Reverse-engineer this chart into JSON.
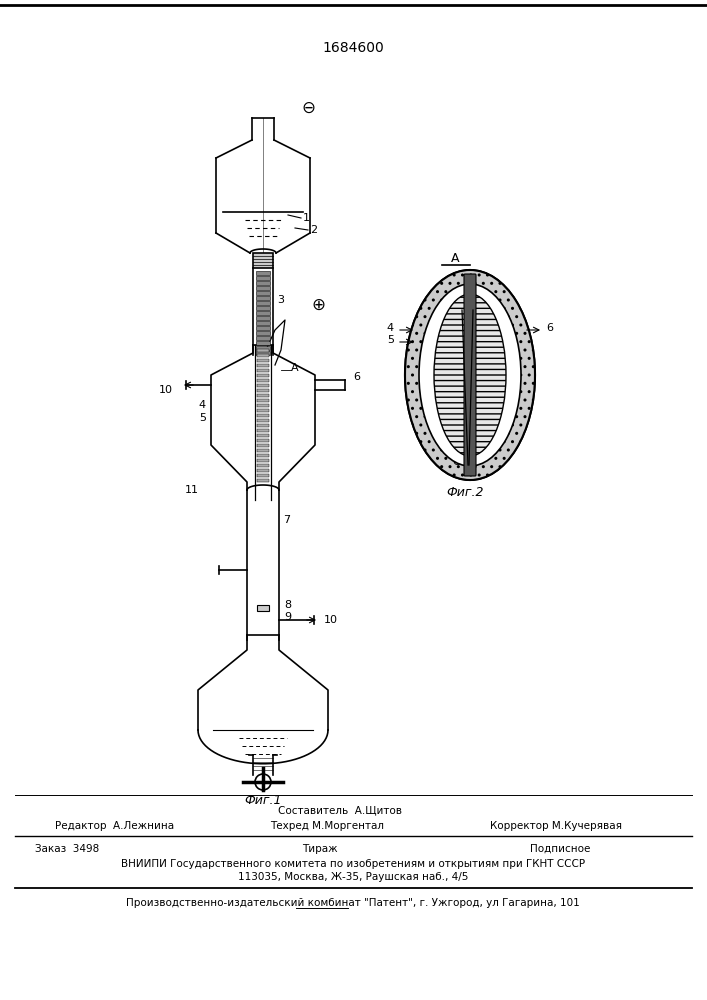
{
  "title": "1684600",
  "background_color": "#ffffff",
  "footer_line1": "Составитель  А.Щитов",
  "footer_line2_left": "Редактор  А.Лежнина",
  "footer_line2_mid": "Техред М.Моргентал",
  "footer_line2_right": "Корректор М.Кучерявая",
  "footer_line4": "ВНИИПИ Государственного комитета по изобретениям и открытиям при ГКНТ СССР",
  "footer_line5": "113035, Москва, Ж-35, Раушская наб., 4/5",
  "footer_line6": "Производственно-издательский комбинат \"Патент\", г. Ужгород, ул Гагарина, 101",
  "fig1_label": "Фиг.1",
  "fig2_label": "Фиг.2"
}
